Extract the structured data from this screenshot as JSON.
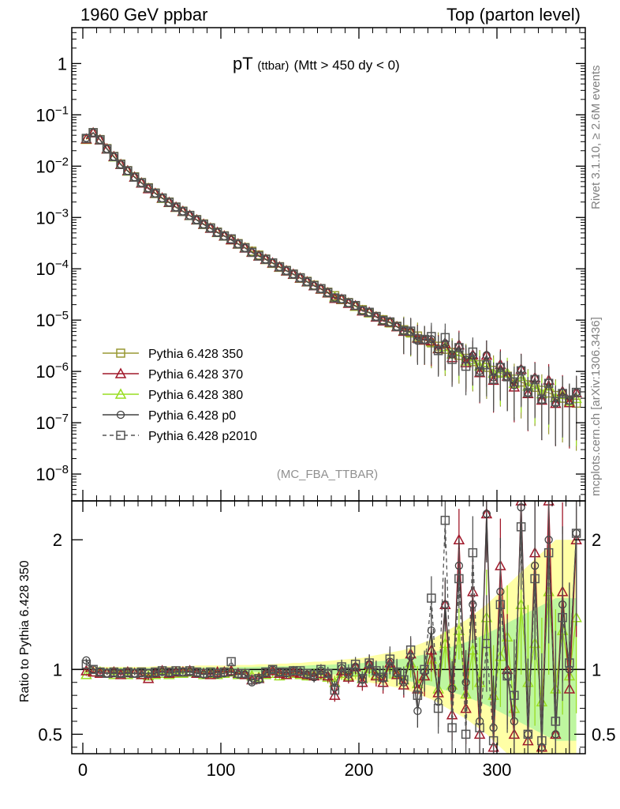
{
  "header": {
    "left": "1960 GeV ppbar",
    "right": "Top (parton level)"
  },
  "side_labels": {
    "rivet": "Rivet 3.1.10, ≥ 2.6M events",
    "mcplots": "mcplots.cern.ch [arXiv:1306.3436]"
  },
  "chart_data": [
    {
      "type": "scatter",
      "panel": "main",
      "title_main": "pT",
      "title_small": "(ttbar)",
      "title_cut": "(Mtt > 450 dy < 0)",
      "watermark": "(MC_FBA_TTBAR)",
      "yscale": "log",
      "xlim": [
        -8,
        364
      ],
      "ylim": [
        3e-09,
        5
      ],
      "y_ticks": [
        {
          "v": 1,
          "t": "1"
        },
        {
          "v": 0.1,
          "t": "10^-1"
        },
        {
          "v": 0.01,
          "t": "10^-2"
        },
        {
          "v": 0.001,
          "t": "10^-3"
        },
        {
          "v": 0.0001,
          "t": "10^-4"
        },
        {
          "v": 1e-05,
          "t": "10^-5"
        },
        {
          "v": 1e-06,
          "t": "10^-6"
        },
        {
          "v": 1e-07,
          "t": "10^-7"
        },
        {
          "v": 1e-08,
          "t": "10^-8"
        }
      ],
      "legend_position": "lower-left",
      "series": [
        {
          "name": "Pythia 6.428 350",
          "color": "#999933",
          "marker": "square",
          "dash": false
        },
        {
          "name": "Pythia 6.428 370",
          "color": "#a0182a",
          "marker": "triangle",
          "dash": false
        },
        {
          "name": "Pythia 6.428 380",
          "color": "#99dd22",
          "marker": "triangle",
          "dash": false
        },
        {
          "name": "Pythia 6.428 p0",
          "color": "#404040",
          "marker": "circle",
          "dash": false
        },
        {
          "name": "Pythia 6.428 p2010",
          "color": "#555555",
          "marker": "square",
          "dash": true
        }
      ],
      "x": [
        2.5,
        7.5,
        12.5,
        17.5,
        22.5,
        27.5,
        32.5,
        37.5,
        42.5,
        47.5,
        52.5,
        57.5,
        62.5,
        67.5,
        72.5,
        77.5,
        82.5,
        87.5,
        92.5,
        97.5,
        102.5,
        107.5,
        112.5,
        117.5,
        122.5,
        127.5,
        132.5,
        137.5,
        142.5,
        147.5,
        152.5,
        157.5,
        162.5,
        167.5,
        172.5,
        177.5,
        182.5,
        187.5,
        192.5,
        197.5,
        202.5,
        207.5,
        212.5,
        217.5,
        222.5,
        227.5,
        232.5,
        237.5,
        242.5,
        247.5,
        252.5,
        257.5,
        262.5,
        267.5,
        272.5,
        277.5,
        282.5,
        287.5,
        292.5,
        297.5,
        302.5,
        307.5,
        312.5,
        317.5,
        322.5,
        327.5,
        332.5,
        337.5,
        342.5,
        347.5,
        352.5,
        357.5
      ],
      "values_350": [
        0.034,
        0.045,
        0.033,
        0.022,
        0.0155,
        0.011,
        0.0082,
        0.0062,
        0.0048,
        0.0038,
        0.003,
        0.0024,
        0.002,
        0.0016,
        0.00133,
        0.0011,
        0.00091,
        0.00075,
        0.00063,
        0.00052,
        0.00044,
        0.00037,
        0.00031,
        0.00026,
        0.00022,
        0.000185,
        0.000155,
        0.00013,
        0.00011,
        9.3e-05,
        7.9e-05,
        6.7e-05,
        5.7e-05,
        4.8e-05,
        4.1e-05,
        3.5e-05,
        3e-05,
        2.55e-05,
        2.2e-05,
        1.88e-05,
        1.6e-05,
        1.38e-05,
        1.18e-05,
        1.02e-05,
        8.8e-06,
        7.6e-06,
        6.5e-06,
        5.6e-06,
        4.9e-06,
        4.2e-06,
        3.6e-06,
        3.1e-06,
        2.7e-06,
        2.35e-06,
        2.05e-06,
        1.8e-06,
        1.55e-06,
        1.35e-06,
        1.2e-06,
        1.05e-06,
        9.2e-07,
        8.1e-07,
        7.1e-07,
        6.2e-07,
        5.5e-07,
        4.9e-07,
        4.3e-07,
        3.8e-07,
        3.4e-07,
        3e-07,
        2.7e-07,
        2.4e-07
      ]
    },
    {
      "type": "scatter",
      "panel": "ratio",
      "ylabel": "Ratio to Pythia 6.428 350",
      "xlim": [
        -8,
        364
      ],
      "ylim": [
        0.35,
        2.3
      ],
      "x_ticks": [
        0,
        100,
        200,
        300
      ],
      "y_ticks": [
        0.5,
        1,
        2
      ],
      "reference_line": 1,
      "ratio_380": [
        0.96,
        0.98,
        0.98,
        0.97,
        0.96,
        0.97,
        0.96,
        0.97,
        0.96,
        0.95,
        0.96,
        0.97,
        0.96,
        0.97,
        0.97,
        0.98,
        0.97,
        0.96,
        0.97,
        0.96,
        0.97,
        0.98,
        0.96,
        0.97,
        0.95,
        0.94,
        0.96,
        0.97,
        0.95,
        0.96,
        0.97,
        0.96,
        0.95,
        0.96,
        0.96,
        0.94,
        0.9,
        0.97,
        0.95,
        0.98,
        0.93,
        1.01,
        0.96,
        0.94,
        1.02,
        0.97,
        0.92,
        1.05,
        0.89,
        0.95,
        1.08,
        0.85,
        1.2,
        0.88,
        1.3,
        0.81,
        1.15,
        0.9,
        1.4,
        0.8,
        1.1,
        1.25,
        0.7,
        1.5,
        0.9,
        1.2,
        0.75,
        1.6,
        0.85,
        1.3,
        0.95,
        1.4
      ],
      "ratio_370": [
        0.99,
        0.98,
        0.97,
        0.97,
        0.98,
        0.96,
        0.98,
        0.97,
        0.96,
        0.93,
        0.97,
        0.99,
        0.97,
        0.98,
        0.98,
        0.99,
        0.97,
        0.97,
        0.96,
        0.98,
        0.98,
        0.99,
        0.97,
        0.96,
        0.92,
        0.93,
        0.97,
        0.99,
        0.97,
        0.96,
        0.98,
        0.97,
        0.96,
        0.95,
        0.97,
        0.95,
        0.8,
        0.99,
        0.94,
        1.02,
        0.9,
        1.04,
        0.95,
        0.9,
        1.05,
        0.96,
        0.88,
        1.12,
        0.85,
        0.95,
        1.15,
        0.82,
        1.5,
        0.65,
        2.0,
        0.7,
        1.6,
        0.5,
        2.2,
        0.4,
        1.8,
        1.0,
        0.5,
        2.3,
        0.45,
        1.9,
        0.4,
        2.3,
        0.5,
        1.6,
        0.85,
        2.0
      ],
      "ratio_p0": [
        1.07,
        1.0,
        0.98,
        0.97,
        0.97,
        0.97,
        0.97,
        0.97,
        0.97,
        0.97,
        0.97,
        0.98,
        0.97,
        0.98,
        0.98,
        0.98,
        0.97,
        0.96,
        0.97,
        0.96,
        0.97,
        0.98,
        0.96,
        0.96,
        0.9,
        0.92,
        0.97,
        1.0,
        0.98,
        0.97,
        0.99,
        0.98,
        0.96,
        0.94,
        0.99,
        0.97,
        0.86,
        1.01,
        0.96,
        1.02,
        0.92,
        1.04,
        0.98,
        0.93,
        1.06,
        0.97,
        0.9,
        1.1,
        0.68,
        0.98,
        1.3,
        0.75,
        1.5,
        0.85,
        1.8,
        0.9,
        1.5,
        0.6,
        2.2,
        0.55,
        1.6,
        0.95,
        0.6,
        2.25,
        0.5,
        1.8,
        0.4,
        2.0,
        0.5,
        1.5,
        1.0,
        2.05
      ],
      "ratio_p2010": [
        1.04,
        1.0,
        0.98,
        0.97,
        0.98,
        0.97,
        0.98,
        0.97,
        0.98,
        0.97,
        0.98,
        0.99,
        0.98,
        0.99,
        0.98,
        0.99,
        0.98,
        0.97,
        0.98,
        0.97,
        0.98,
        1.06,
        0.97,
        0.97,
        0.92,
        0.93,
        0.98,
        1.0,
        0.98,
        0.98,
        0.99,
        0.99,
        0.97,
        0.96,
        1.0,
        0.97,
        0.84,
        1.02,
        0.98,
        1.04,
        0.93,
        1.05,
        0.99,
        0.94,
        1.08,
        0.98,
        0.92,
        1.15,
        0.8,
        1.0,
        1.55,
        0.7,
        2.15,
        0.55,
        1.7,
        0.5,
        1.9,
        0.55,
        1.2,
        0.45,
        1.5,
        0.95,
        0.8,
        2.1,
        0.5,
        1.7,
        0.45,
        1.9,
        0.6,
        1.4,
        1.05,
        2.05
      ],
      "band_halfwidth": [
        0.02,
        0.02,
        0.02,
        0.02,
        0.02,
        0.02,
        0.02,
        0.02,
        0.02,
        0.02,
        0.025,
        0.025,
        0.025,
        0.025,
        0.025,
        0.025,
        0.03,
        0.03,
        0.03,
        0.03,
        0.03,
        0.03,
        0.035,
        0.035,
        0.035,
        0.04,
        0.04,
        0.04,
        0.045,
        0.045,
        0.05,
        0.05,
        0.055,
        0.06,
        0.06,
        0.065,
        0.07,
        0.075,
        0.08,
        0.085,
        0.09,
        0.1,
        0.11,
        0.12,
        0.13,
        0.14,
        0.15,
        0.17,
        0.19,
        0.21,
        0.23,
        0.26,
        0.29,
        0.32,
        0.35,
        0.38,
        0.42,
        0.46,
        0.5,
        0.55,
        0.6,
        0.65,
        0.7,
        0.75,
        0.8,
        0.85,
        0.9,
        0.95,
        1.0,
        1.0,
        1.0,
        1.0
      ]
    }
  ]
}
